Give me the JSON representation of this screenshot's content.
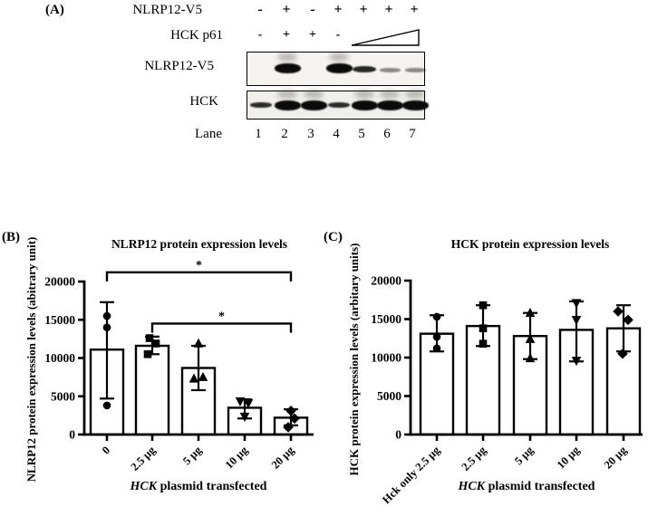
{
  "panel_a": {
    "label": "(A)",
    "condition_rows": [
      {
        "label": "NLRP12-V5",
        "symbols": [
          "-",
          "+",
          "-",
          "+",
          "+",
          "+",
          "+"
        ]
      },
      {
        "label": "HCK p61",
        "symbols": [
          "-",
          "+",
          "+",
          "-"
        ],
        "wedge_over_lanes": "5-7"
      }
    ],
    "blots": [
      {
        "label": "NLRP12-V5",
        "bands": [
          {
            "lane": 2,
            "level": "strong",
            "smudge": true
          },
          {
            "lane": 4,
            "level": "strong",
            "smudge": true
          },
          {
            "lane": 5,
            "level": "medium",
            "smudge": false
          },
          {
            "lane": 6,
            "level": "faint",
            "smudge": false
          },
          {
            "lane": 7,
            "level": "faint",
            "smudge": false
          }
        ]
      },
      {
        "label": "HCK",
        "bands": [
          {
            "lane": 1,
            "level": "thin",
            "smudge": false
          },
          {
            "lane": 2,
            "level": "strong",
            "smudge": true
          },
          {
            "lane": 3,
            "level": "strong",
            "smudge": true
          },
          {
            "lane": 4,
            "level": "thin",
            "smudge": false
          },
          {
            "lane": 5,
            "level": "strong",
            "smudge": true
          },
          {
            "lane": 6,
            "level": "strong",
            "smudge": true
          },
          {
            "lane": 7,
            "level": "strong",
            "smudge": true
          }
        ]
      }
    ],
    "lane_row": {
      "label": "Lane",
      "numbers": [
        "1",
        "2",
        "3",
        "4",
        "5",
        "6",
        "7"
      ]
    }
  },
  "panel_b": {
    "label": "(B)"
  },
  "panel_c": {
    "label": "(C)"
  },
  "chart_data": [
    {
      "type": "bar",
      "panel": "B",
      "title": "NLRP12 protein expression levels",
      "ylabel": "NLRP12 protein expression levels (abitrary unit)",
      "xlabel_italic": "HCK",
      "xlabel_rest": " plasmid transfected",
      "ylim": [
        0,
        20000
      ],
      "yticks": [
        0,
        5000,
        10000,
        15000,
        20000
      ],
      "grid": false,
      "legend": "none",
      "bar_fill": "#ffffff",
      "bar_stroke": "#000000",
      "categories": [
        "0",
        "2.5 µg",
        "5 µg",
        "10 µg",
        "20 µg"
      ],
      "markers": [
        "circle",
        "square",
        "triangle",
        "triangle-down",
        "diamond"
      ],
      "means": [
        11100,
        11600,
        8700,
        3500,
        2200
      ],
      "whisker_low": [
        4700,
        10500,
        5800,
        2100,
        1200
      ],
      "whisker_high": [
        17300,
        12800,
        11600,
        4600,
        3300
      ],
      "points": [
        [
          15500,
          14000,
          3800
        ],
        [
          12600,
          11900,
          10500
        ],
        [
          11900,
          7500,
          7300
        ],
        [
          4350,
          4100,
          2350
        ],
        [
          3100,
          2100,
          950
        ]
      ],
      "significance": [
        {
          "from": 0,
          "to": 4,
          "label": "*",
          "y": 21200
        },
        {
          "from": 1,
          "to": 4,
          "label": "*",
          "y": 14500
        }
      ]
    },
    {
      "type": "bar",
      "panel": "C",
      "title": "HCK protein expression levels",
      "ylabel": "HCK protein expression levels (arbitary units)",
      "xlabel_italic": "HCK",
      "xlabel_rest": " plasmid transfected",
      "ylim": [
        0,
        20000
      ],
      "yticks": [
        0,
        5000,
        10000,
        15000,
        20000
      ],
      "grid": false,
      "legend": "none",
      "bar_fill": "#ffffff",
      "bar_stroke": "#000000",
      "categories": [
        "Hck only 2.5 µg",
        "2.5 µg",
        "5 µg",
        "10 µg",
        "20 µg"
      ],
      "markers": [
        "circle",
        "square",
        "triangle",
        "triangle-down",
        "diamond"
      ],
      "means": [
        13100,
        14100,
        12800,
        13600,
        13800
      ],
      "whisker_low": [
        10800,
        11500,
        9800,
        9500,
        10800
      ],
      "whisker_high": [
        15500,
        16800,
        15800,
        17300,
        16800
      ],
      "points": [
        [
          15300,
          12700,
          11200
        ],
        [
          16800,
          13800,
          11800
        ],
        [
          15800,
          12400,
          9900
        ],
        [
          17100,
          14900,
          9600
        ],
        [
          16000,
          14900,
          10500
        ]
      ],
      "significance": []
    }
  ]
}
